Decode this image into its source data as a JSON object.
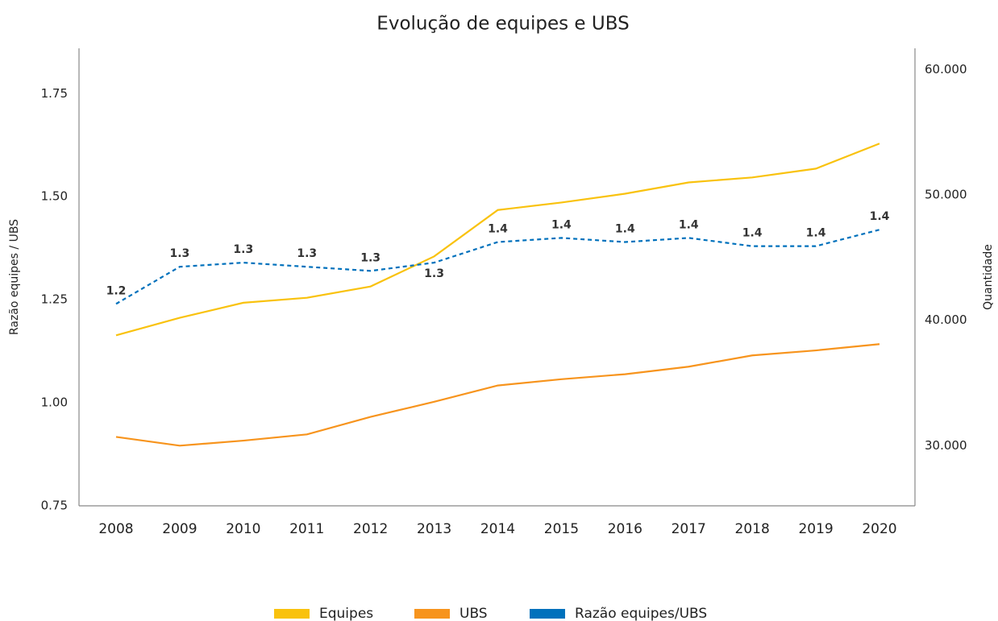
{
  "chart_data": {
    "type": "line",
    "title": "Evolução de equipes e UBS",
    "ylabel": "Razão equipes / UBS",
    "y2label": "Quantidade",
    "categories": [
      "2008",
      "2009",
      "2010",
      "2011",
      "2012",
      "2013",
      "2014",
      "2015",
      "2016",
      "2017",
      "2018",
      "2019",
      "2020"
    ],
    "ylim": [
      0.75,
      1.86
    ],
    "yticks": [
      {
        "value": 0.75,
        "label": "0.75"
      },
      {
        "value": 1.0,
        "label": "1.00"
      },
      {
        "value": 1.25,
        "label": "1.25"
      },
      {
        "value": 1.5,
        "label": "1.50"
      },
      {
        "value": 1.75,
        "label": "1.75"
      }
    ],
    "y2lim": [
      25200,
      61700
    ],
    "y2ticks": [
      {
        "value": 30000,
        "label": "30.000"
      },
      {
        "value": 40000,
        "label": "40.000"
      },
      {
        "value": 50000,
        "label": "50.000"
      },
      {
        "value": 60000,
        "label": "60.000"
      }
    ],
    "grid": false,
    "series": [
      {
        "name": "Equipes",
        "color": "#f9c20e",
        "axis": "y2",
        "values": [
          38800,
          40200,
          41400,
          41800,
          42700,
          45100,
          48800,
          49400,
          50100,
          51000,
          51400,
          52100,
          54100
        ]
      },
      {
        "name": "UBS",
        "color": "#f7941d",
        "axis": "y2",
        "values": [
          30700,
          30000,
          30400,
          30900,
          32300,
          33500,
          34800,
          35300,
          35700,
          36300,
          37200,
          37600,
          38100
        ]
      },
      {
        "name": "Razão equipes/UBS",
        "color": "#0071bc",
        "dashed": true,
        "values": [
          1.24,
          1.33,
          1.34,
          1.33,
          1.32,
          1.34,
          1.39,
          1.4,
          1.39,
          1.4,
          1.38,
          1.38,
          1.42
        ],
        "value_labels": [
          "1.2",
          "1.3",
          "1.3",
          "1.3",
          "1.3",
          "1.3",
          "1.4",
          "1.4",
          "1.4",
          "1.4",
          "1.4",
          "1.4",
          "1.4"
        ]
      }
    ]
  }
}
